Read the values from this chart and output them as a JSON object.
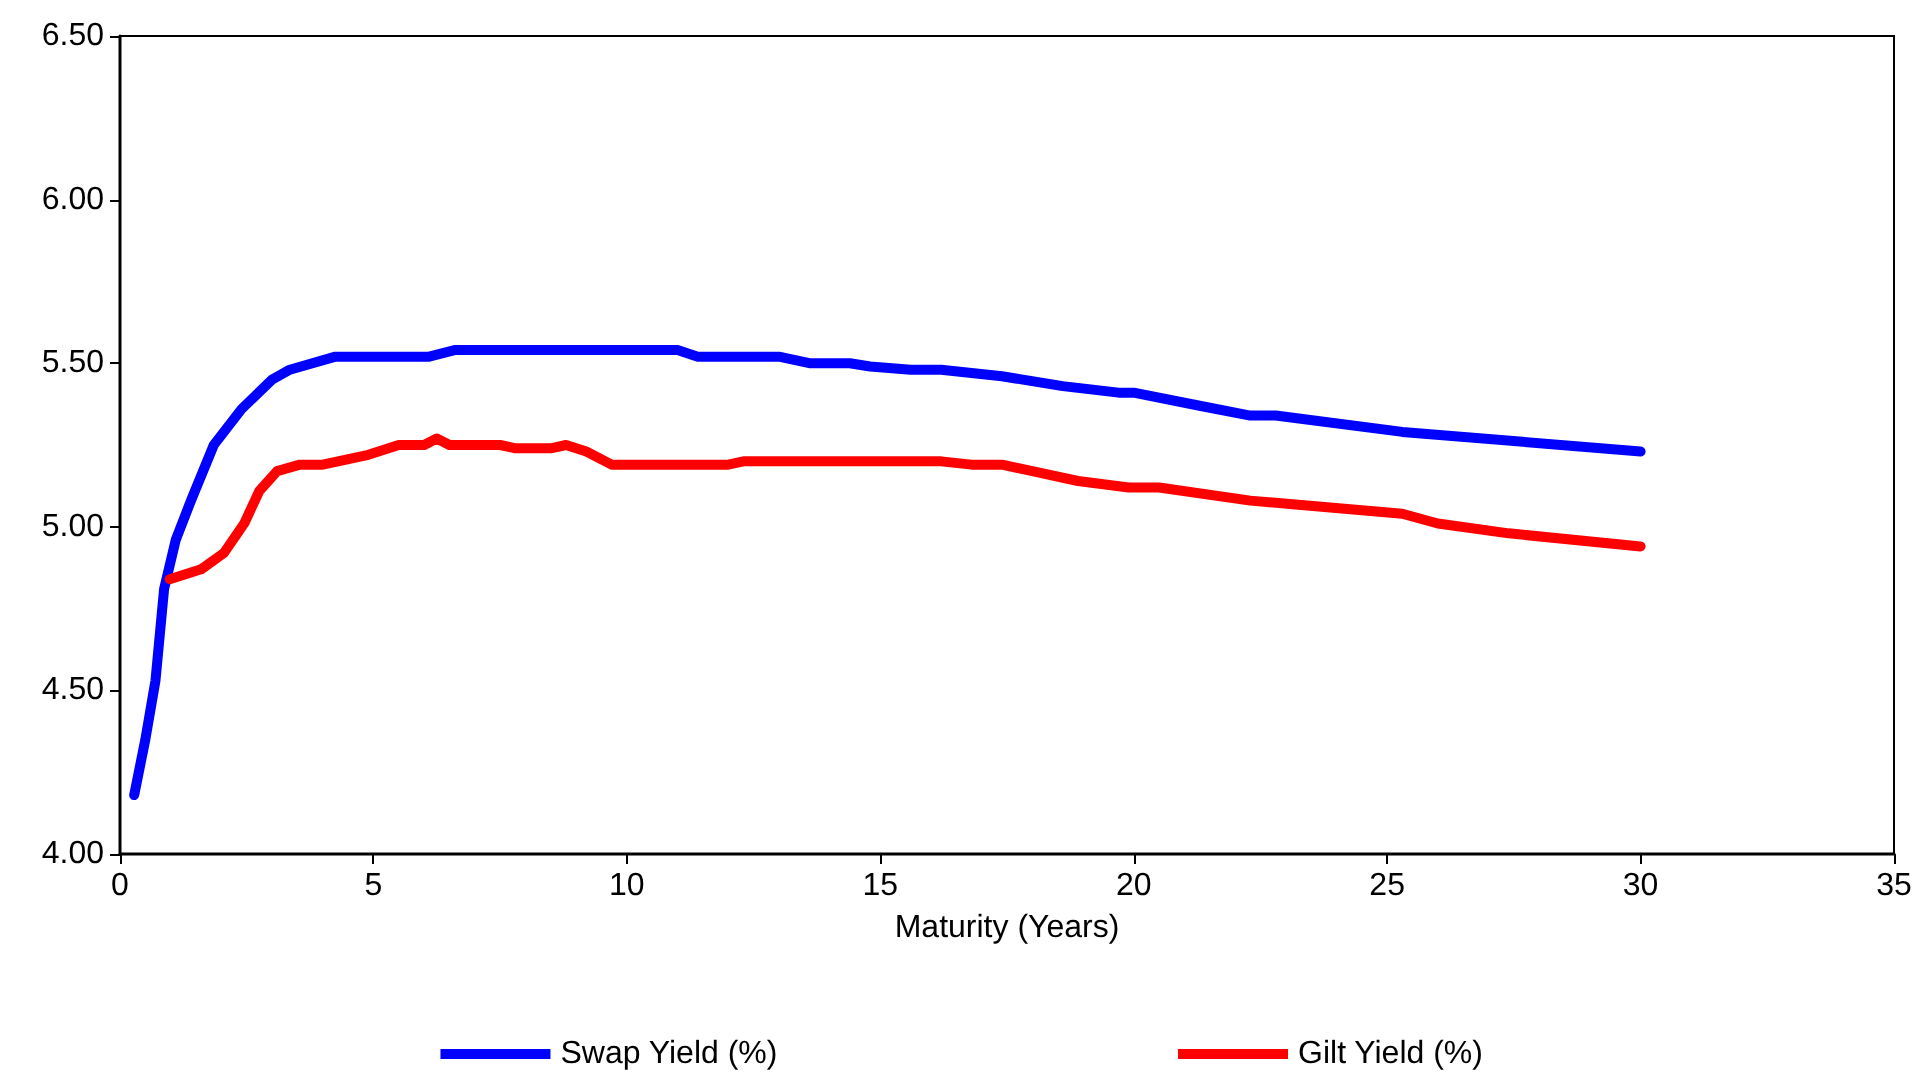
{
  "chart_data": {
    "type": "line",
    "xlabel": "Maturity (Years)",
    "xlim": [
      0,
      35
    ],
    "xticks": [
      0,
      5,
      10,
      15,
      20,
      25,
      30,
      35
    ],
    "ylim": [
      4,
      6.5
    ],
    "yticks": [
      {
        "value": 4,
        "label": "4.00"
      },
      {
        "value": 4.5,
        "label": "4.50"
      },
      {
        "value": 5,
        "label": "5.00"
      },
      {
        "value": 5.5,
        "label": "5.50"
      },
      {
        "value": 6,
        "label": "6.00"
      },
      {
        "value": 6.5,
        "label": "6.50"
      }
    ],
    "grid": false,
    "legend": "bottom",
    "marker": "none",
    "line_style": "solid",
    "series": [
      {
        "name": "Swap Yield (%)",
        "color": "#0000ff",
        "x": [
          0.28,
          0.5,
          0.7,
          0.87,
          1.1,
          1.4,
          1.85,
          2.4,
          3.0,
          3.35,
          4.25,
          6.1,
          6.6,
          11,
          11.4,
          13,
          13.6,
          14.4,
          14.8,
          15.6,
          16.2,
          17.4,
          18.6,
          19.7,
          20,
          21.3,
          22.3,
          22.8,
          25.3,
          30
        ],
        "values": [
          4.18,
          4.35,
          4.53,
          4.81,
          4.96,
          5.08,
          5.25,
          5.36,
          5.45,
          5.48,
          5.52,
          5.52,
          5.54,
          5.54,
          5.52,
          5.52,
          5.5,
          5.5,
          5.49,
          5.48,
          5.48,
          5.46,
          5.43,
          5.41,
          5.41,
          5.37,
          5.34,
          5.34,
          5.29,
          5.23
        ]
      },
      {
        "name": "Gilt Yield (%)",
        "color": "#ff0000",
        "x": [
          0.98,
          1.6,
          2.05,
          2.45,
          2.75,
          3.1,
          3.55,
          4.0,
          4.9,
          5.5,
          6.0,
          6.25,
          6.5,
          7.5,
          7.8,
          8.5,
          8.8,
          9.2,
          9.7,
          12,
          12.3,
          15,
          16.2,
          16.8,
          17.4,
          18,
          18.9,
          19.9,
          20.5,
          22.3,
          25.3,
          26,
          27.4,
          30
        ],
        "values": [
          4.84,
          4.87,
          4.92,
          5.01,
          5.11,
          5.17,
          5.19,
          5.19,
          5.22,
          5.25,
          5.25,
          5.27,
          5.25,
          5.25,
          5.24,
          5.24,
          5.25,
          5.23,
          5.19,
          5.19,
          5.2,
          5.2,
          5.2,
          5.19,
          5.19,
          5.17,
          5.14,
          5.12,
          5.12,
          5.08,
          5.04,
          5.01,
          4.98,
          4.94
        ]
      }
    ]
  }
}
